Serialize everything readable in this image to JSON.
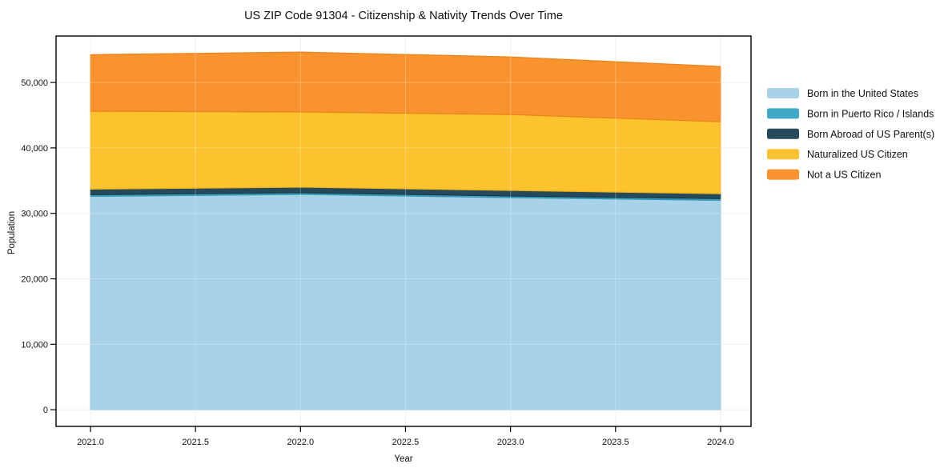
{
  "title": "US ZIP Code 91304 - Citizenship & Nativity Trends Over Time",
  "chart_data": {
    "type": "area",
    "stacked": true,
    "title": "US ZIP Code 91304 - Citizenship & Nativity Trends Over Time",
    "xlabel": "Year",
    "ylabel": "Population",
    "x": [
      2021,
      2022,
      2023,
      2024
    ],
    "series": [
      {
        "name": "Born in the United States",
        "color": "#a7d2e7",
        "edge": "#8cc2dc",
        "values": [
          32600,
          32900,
          32400,
          32000
        ]
      },
      {
        "name": "Born in Puerto Rico / Islands",
        "color": "#3ea8c6",
        "edge": "#2e93b0",
        "values": [
          250,
          250,
          250,
          250
        ]
      },
      {
        "name": "Born Abroad of US Parent(s)",
        "color": "#254a5c",
        "edge": "#1a3846",
        "values": [
          850,
          850,
          850,
          750
        ]
      },
      {
        "name": "Naturalized US Citizen",
        "color": "#fdc32f",
        "edge": "#eeb019",
        "values": [
          11900,
          11500,
          11600,
          11000
        ]
      },
      {
        "name": "Not a US Citizen",
        "color": "#f8932e",
        "edge": "#e98218",
        "values": [
          8650,
          9150,
          8800,
          8450
        ]
      }
    ],
    "totals": [
      54250,
      54650,
      53900,
      52450
    ],
    "x_ticks": [
      2021.0,
      2021.5,
      2022.0,
      2022.5,
      2023.0,
      2023.5,
      2024.0
    ],
    "x_tick_labels": [
      "2021.0",
      "2021.5",
      "2022.0",
      "2022.5",
      "2023.0",
      "2023.5",
      "2024.0"
    ],
    "y_ticks": [
      0,
      10000,
      20000,
      30000,
      40000,
      50000
    ],
    "y_tick_labels": [
      "0",
      "10,000",
      "20,000",
      "30,000",
      "40,000",
      "50,000"
    ],
    "xlim": [
      2020.836,
      2024.145
    ],
    "ylim": [
      -2550,
      57100
    ],
    "grid": true,
    "grid_color": "#ebebeb",
    "legend_position": "right",
    "frame_color": "#000000",
    "background_color": "#ffffff"
  }
}
